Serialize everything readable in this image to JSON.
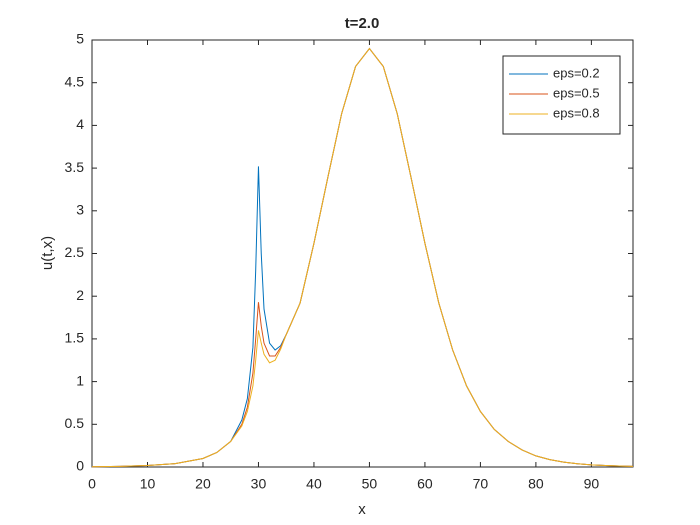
{
  "chart_data": {
    "type": "line",
    "title": "t=2.0",
    "x_label": "x",
    "y_label": "u(t,x)",
    "x": [
      0,
      5,
      10,
      15,
      20,
      22.5,
      25,
      27,
      28,
      29,
      29.5,
      30,
      30.5,
      31,
      32,
      33,
      34,
      35,
      37.5,
      40,
      42.5,
      45,
      47.5,
      50,
      52.5,
      55,
      57.5,
      60,
      62.5,
      65,
      67.5,
      70,
      72.5,
      75,
      77.5,
      80,
      82.5,
      85,
      87.5,
      90,
      92.5,
      95,
      97.5
    ],
    "series": [
      {
        "name": "eps=0.2",
        "color": "#0072BD",
        "values": [
          0.003,
          0.007,
          0.017,
          0.04,
          0.1,
          0.17,
          0.3,
          0.55,
          0.8,
          1.4,
          2.3,
          3.52,
          2.5,
          1.85,
          1.45,
          1.37,
          1.42,
          1.55,
          1.92,
          2.62,
          3.39,
          4.14,
          4.69,
          4.9,
          4.69,
          4.14,
          3.39,
          2.62,
          1.92,
          1.37,
          0.95,
          0.65,
          0.44,
          0.3,
          0.2,
          0.13,
          0.086,
          0.057,
          0.038,
          0.025,
          0.017,
          0.011,
          0.007
        ]
      },
      {
        "name": "eps=0.5",
        "color": "#D95319",
        "values": [
          0.003,
          0.007,
          0.017,
          0.04,
          0.1,
          0.17,
          0.3,
          0.5,
          0.7,
          1.1,
          1.5,
          1.93,
          1.65,
          1.45,
          1.3,
          1.3,
          1.4,
          1.55,
          1.92,
          2.62,
          3.39,
          4.14,
          4.69,
          4.9,
          4.69,
          4.14,
          3.39,
          2.62,
          1.92,
          1.37,
          0.95,
          0.65,
          0.44,
          0.3,
          0.2,
          0.13,
          0.086,
          0.057,
          0.038,
          0.025,
          0.017,
          0.011,
          0.007
        ]
      },
      {
        "name": "eps=0.8",
        "color": "#EDB120",
        "values": [
          0.003,
          0.007,
          0.017,
          0.04,
          0.1,
          0.17,
          0.3,
          0.48,
          0.65,
          0.95,
          1.25,
          1.6,
          1.45,
          1.32,
          1.22,
          1.25,
          1.38,
          1.55,
          1.92,
          2.62,
          3.39,
          4.14,
          4.69,
          4.9,
          4.69,
          4.14,
          3.39,
          2.62,
          1.92,
          1.37,
          0.95,
          0.65,
          0.44,
          0.3,
          0.2,
          0.13,
          0.086,
          0.057,
          0.038,
          0.025,
          0.017,
          0.011,
          0.007
        ]
      }
    ],
    "xlim": [
      0,
      97.5
    ],
    "xticks": [
      0,
      10,
      20,
      30,
      40,
      50,
      60,
      70,
      80,
      90
    ],
    "ylim": [
      0,
      5
    ],
    "yticks": [
      0,
      0.5,
      1,
      1.5,
      2,
      2.5,
      3,
      3.5,
      4,
      4.5,
      5
    ],
    "legend": "upper right"
  }
}
